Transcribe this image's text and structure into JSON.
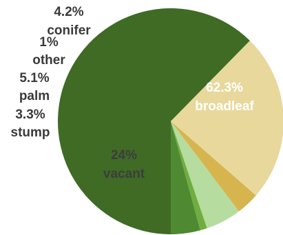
{
  "chart_data": {
    "type": "pie",
    "title": "",
    "legend": "none",
    "slices": [
      {
        "label": "broadleaf",
        "value": 62.3,
        "value_label": "62.3%",
        "color": "#3f6b25"
      },
      {
        "label": "vacant",
        "value": 24,
        "value_label": "24%",
        "color": "#e8d89c"
      },
      {
        "label": "stump",
        "value": 3.3,
        "value_label": "3.3%",
        "color": "#d6b54f"
      },
      {
        "label": "palm",
        "value": 5.1,
        "value_label": "5.1%",
        "color": "#b6dca0"
      },
      {
        "label": "other",
        "value": 1,
        "value_label": "1%",
        "color": "#6fae3e"
      },
      {
        "label": "conifer",
        "value": 4.2,
        "value_label": "4.2%",
        "color": "#4f8a33"
      }
    ]
  }
}
